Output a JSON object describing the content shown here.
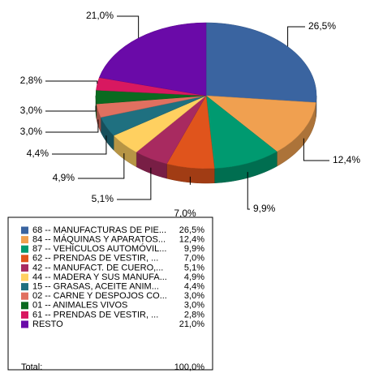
{
  "chart_data": {
    "type": "pie",
    "categories": [
      "68 -- MANUFACTURAS DE PIE...",
      "84 -- MÁQUINAS Y APARATOS...",
      "87 -- VEHÍCULOS AUTOMÓVIL...",
      "62 -- PRENDAS DE VESTIR, ...",
      "42 -- MANUFACT. DE CUERO,...",
      "44 -- MADERA Y SUS MANUFA...",
      "15 -- GRASAS, ACEITE ANIM...",
      "02 -- CARNE Y DESPOJOS CO...",
      "01 -- ANIMALES VIVOS",
      "61 -- PRENDAS DE VESTIR, ...",
      "RESTO"
    ],
    "values": [
      26.5,
      12.4,
      9.9,
      7.0,
      5.1,
      4.9,
      4.4,
      3.0,
      3.0,
      2.8,
      21.0
    ],
    "value_labels": [
      "26,5%",
      "12,4%",
      "9,9%",
      "7,0%",
      "5,1%",
      "4,9%",
      "4,4%",
      "3,0%",
      "3,0%",
      "2,8%",
      "21,0%"
    ],
    "colors": [
      "#3a64a0",
      "#f0a050",
      "#009a70",
      "#e0541c",
      "#a82a60",
      "#ffd060",
      "#1f7080",
      "#e07060",
      "#0a6a20",
      "#d81860",
      "#6a0aa8"
    ],
    "total_label": "Total:",
    "total": 100,
    "total_value_label": "100,0%"
  }
}
